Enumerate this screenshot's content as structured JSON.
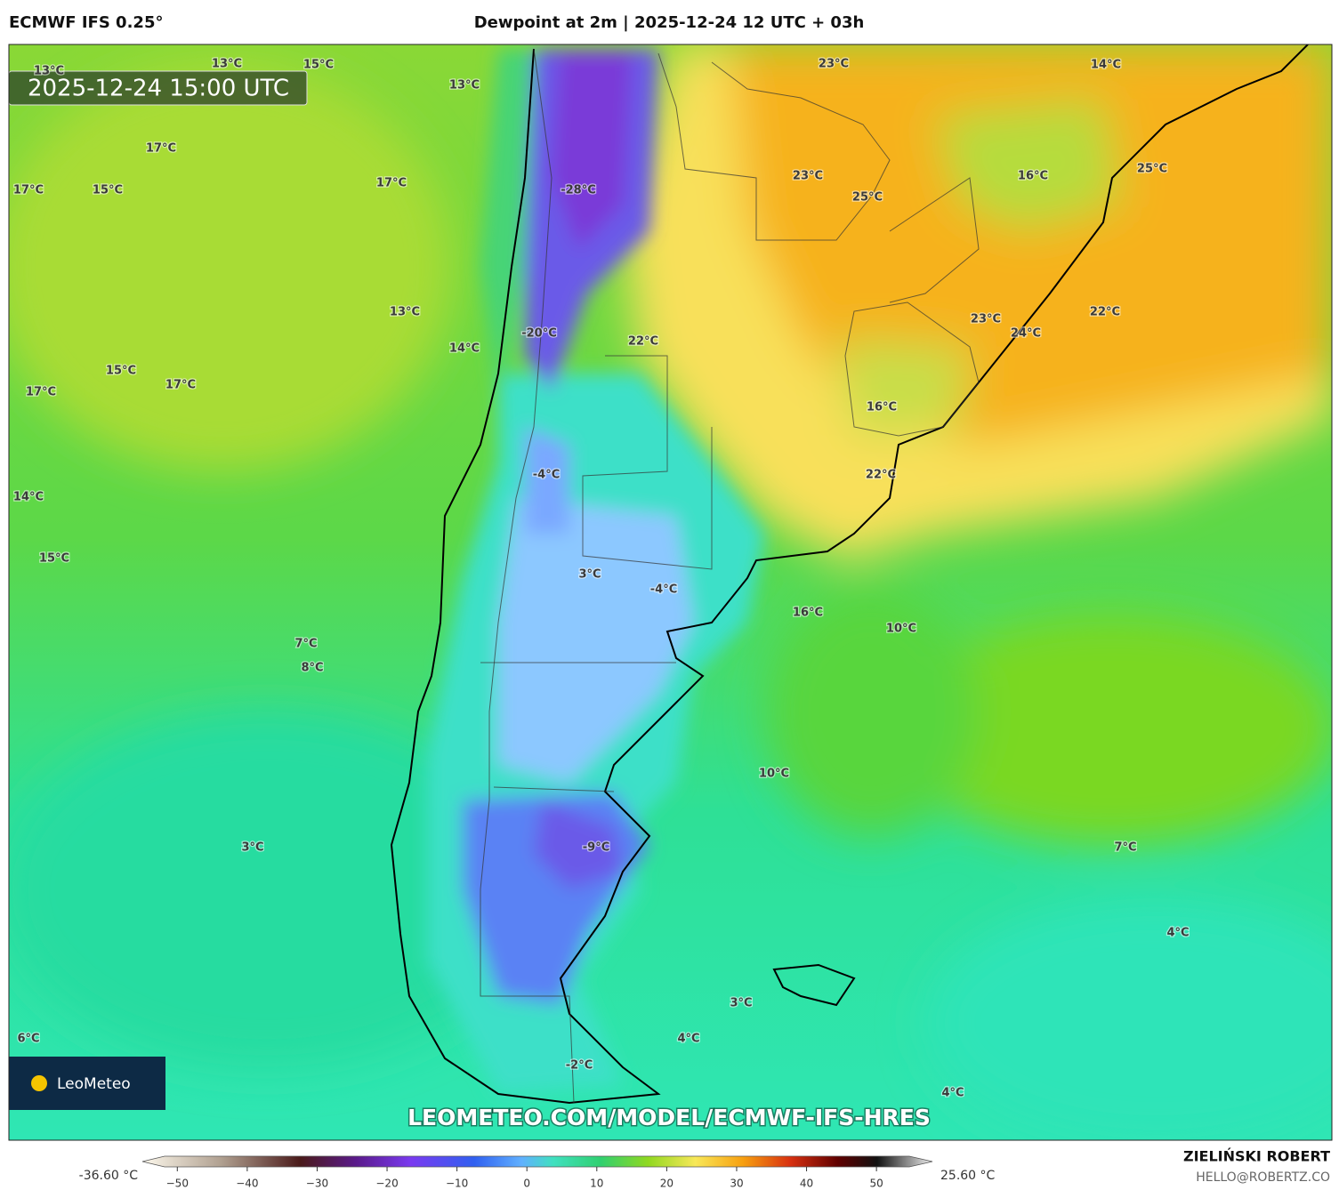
{
  "header": {
    "model": "ECMWF IFS 0.25°",
    "title": "Dewpoint at 2m | 2025-12-24 12 UTC + 03h",
    "timestamp": "2025-12-24 15:00 UTC"
  },
  "map": {
    "labels": [
      "13°C",
      "13°C",
      "15°C",
      "13°C",
      "17°C",
      "17°C",
      "15°C",
      "17°C",
      "-28°C",
      "23°C",
      "14°C",
      "23°C",
      "25°C",
      "16°C",
      "25°C",
      "13°C",
      "14°C",
      "-20°C",
      "22°C",
      "23°C",
      "24°C",
      "22°C",
      "15°C",
      "17°C",
      "17°C",
      "16°C",
      "-4°C",
      "22°C",
      "14°C",
      "15°C",
      "3°C",
      "-4°C",
      "16°C",
      "10°C",
      "7°C",
      "8°C",
      "10°C",
      "3°C",
      "-9°C",
      "7°C",
      "4°C",
      "3°C",
      "6°C",
      "4°C",
      "-2°C",
      "4°C"
    ],
    "logo": "LeoMeteo",
    "watermark": "LEOMETEO.COM/MODEL/ECMWF-IFS-HRES"
  },
  "colorbar": {
    "min_label": "-36.60 °C",
    "max_label": "25.60 °C",
    "lim": [
      -55,
      58
    ],
    "ticks": [
      {
        "value": -50,
        "label": "−50"
      },
      {
        "value": -40,
        "label": "−40"
      },
      {
        "value": -30,
        "label": "−30"
      },
      {
        "value": -20,
        "label": "−20"
      },
      {
        "value": -10,
        "label": "−10"
      },
      0,
      10,
      20,
      30,
      40,
      50
    ]
  },
  "footer": {
    "author": "ZIELIŃSKI ROBERT",
    "email": "HELLO@ROBERTZ.CO"
  }
}
